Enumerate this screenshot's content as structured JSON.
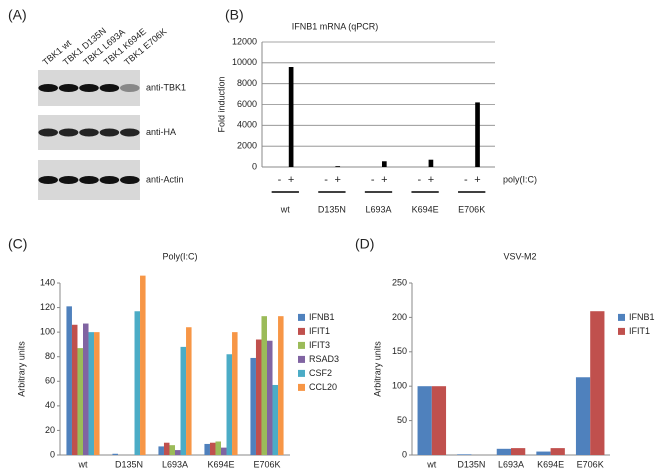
{
  "blot": {
    "panel": "(A)",
    "lanes": [
      "TBK1 wt",
      "TBK1 D135N",
      "TBK1 L693A",
      "TBK1 K694E",
      "TBK1 E706K"
    ],
    "antibodies": [
      "anti-TBK1",
      "anti-HA",
      "anti-Actin"
    ]
  },
  "chart_data": [
    {
      "type": "bar",
      "panel": "(B)",
      "title": "IFNB1 mRNA (qPCR)",
      "y_label": "Fold induction",
      "categories": [
        "wt",
        "D135N",
        "L693A",
        "K694E",
        "E706K"
      ],
      "treatment_label": "poly(I:C)",
      "names_below_bars": true,
      "series": [
        {
          "name": "-",
          "color": "#000000",
          "values": [
            0,
            0,
            0,
            0,
            0
          ]
        },
        {
          "name": "+",
          "color": "#000000",
          "values": [
            9600,
            80,
            550,
            700,
            6200
          ]
        }
      ],
      "ylim": [
        0,
        12000
      ],
      "yticks": [
        0,
        2000,
        4000,
        6000,
        8000,
        10000,
        12000
      ],
      "grid": true
    },
    {
      "type": "bar",
      "panel": "(C)",
      "title": "Poly(I:C)",
      "y_label": "Arbitrary units",
      "categories": [
        "wt",
        "D135N",
        "L693A",
        "K694E",
        "E706K"
      ],
      "legend": "right",
      "series": [
        {
          "name": "IFNB1",
          "color": "#4f81bd",
          "values": [
            121,
            1,
            7,
            9,
            79
          ]
        },
        {
          "name": "IFIT1",
          "color": "#c0504d",
          "values": [
            106,
            0,
            10,
            10,
            94
          ]
        },
        {
          "name": "IFIT3",
          "color": "#9bbb59",
          "values": [
            87,
            0,
            8,
            11,
            113
          ]
        },
        {
          "name": "RSAD3",
          "color": "#8064a2",
          "values": [
            107,
            0,
            4,
            6,
            93
          ]
        },
        {
          "name": "CSF2",
          "color": "#4bacc6",
          "values": [
            100,
            117,
            88,
            82,
            57
          ]
        },
        {
          "name": "CCL20",
          "color": "#f79646",
          "values": [
            100,
            146,
            104,
            100,
            113
          ]
        }
      ],
      "ylim": [
        0,
        140
      ],
      "yticks": [
        0,
        20,
        40,
        60,
        80,
        100,
        120,
        140
      ],
      "grid": false
    },
    {
      "type": "bar",
      "panel": "(D)",
      "title": "VSV-M2",
      "y_label": "Arbitrary units",
      "categories": [
        "wt",
        "D135N",
        "L693A",
        "K694E",
        "E706K"
      ],
      "legend": "right",
      "series": [
        {
          "name": "IFNB1",
          "color": "#4f81bd",
          "values": [
            100,
            1,
            9,
            5,
            113
          ]
        },
        {
          "name": "IFIT1",
          "color": "#c0504d",
          "values": [
            100,
            0,
            10,
            10,
            209
          ]
        }
      ],
      "ylim": [
        0,
        250
      ],
      "yticks": [
        0,
        50,
        100,
        150,
        200,
        250
      ],
      "grid": false
    }
  ]
}
